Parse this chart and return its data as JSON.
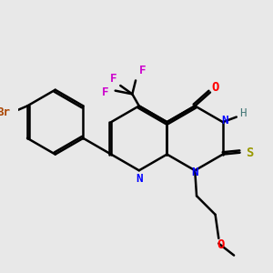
{
  "bg_color": "#e8e8e8",
  "figsize": [
    3.0,
    3.0
  ],
  "dpi": 100,
  "bond_color": "#000000",
  "bond_lw": 1.8,
  "colors": {
    "N": "#0000ff",
    "O": "#ff0000",
    "S": "#999900",
    "F": "#cc00cc",
    "Br": "#aa4400",
    "H": "#447777",
    "C": "#000000"
  }
}
